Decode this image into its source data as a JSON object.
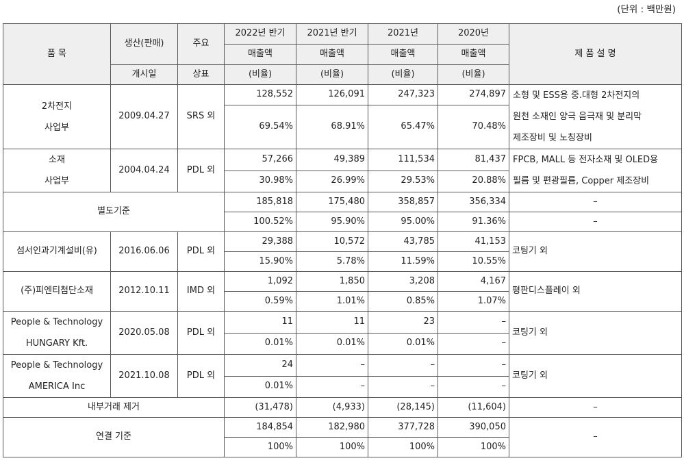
{
  "unit_note": "(단위 : 백만원)",
  "header": {
    "item": "품 목",
    "launch_top": "생산(판매)",
    "launch_bottom": "개시일",
    "brand_top": "주요",
    "brand_bottom": "상표",
    "col2022h": [
      "2022년 반기",
      "매출액",
      "(비율)"
    ],
    "col2021h": [
      "2021년 반기",
      "매출액",
      "(비율)"
    ],
    "col2021": [
      "2021년",
      "매출액",
      "(비율)"
    ],
    "col2020": [
      "2020년",
      "매출액",
      "(비율)"
    ],
    "desc": "제 품 설 명"
  },
  "rows": [
    {
      "name": [
        "2차전지",
        "사업부"
      ],
      "date": "2009.04.27",
      "brand": "SRS 외",
      "sales": [
        "128,552",
        "126,091",
        "247,323",
        "274,897"
      ],
      "ratio": [
        "69.54%",
        "68.91%",
        "65.47%",
        "70.48%"
      ],
      "desc": [
        "소형 및 ESS용 중.대형 2차전지의",
        "원천 소재인 양극 음극재 및 분리막",
        "제조장비 및 노칭장비"
      ]
    },
    {
      "name": [
        "소재",
        "사업부"
      ],
      "date": "2004.04.24",
      "brand": "PDL 외",
      "sales": [
        "57,266",
        "49,389",
        "111,534",
        "81,437"
      ],
      "ratio": [
        "30.98%",
        "26.99%",
        "29.53%",
        "20.88%"
      ],
      "desc": [
        "FPCB, MALL 등 전자소재 및 OLED용",
        "필름 및 편광필름, Copper 제조장비"
      ]
    },
    {
      "name": [
        "별도기준"
      ],
      "sales": [
        "185,818",
        "175,480",
        "358,857",
        "356,334"
      ],
      "ratio": [
        "100.52%",
        "95.90%",
        "95.00%",
        "91.36%"
      ],
      "desc": [
        "–",
        "–"
      ]
    },
    {
      "name": [
        "섬서인과기계설비(유)"
      ],
      "date": "2016.06.06",
      "brand": "PDL 외",
      "sales": [
        "29,388",
        "10,572",
        "43,785",
        "41,153"
      ],
      "ratio": [
        "15.90%",
        "5.78%",
        "11.59%",
        "10.55%"
      ],
      "desc": [
        "코팅기 외"
      ]
    },
    {
      "name": [
        "(주)피엔티첨단소재"
      ],
      "date": "2012.10.11",
      "brand": "IMD 외",
      "sales": [
        "1,092",
        "1,850",
        "3,208",
        "4,167"
      ],
      "ratio": [
        "0.59%",
        "1.01%",
        "0.85%",
        "1.07%"
      ],
      "desc": [
        "평판디스플레이 외"
      ]
    },
    {
      "name": [
        "People & Technology",
        "HUNGARY Kft."
      ],
      "date": "2020.05.08",
      "brand": "PDL 외",
      "sales": [
        "11",
        "11",
        "23",
        "–"
      ],
      "ratio": [
        "0.01%",
        "0.01%",
        "0.01%",
        "–"
      ],
      "desc": [
        "코팅기 외"
      ]
    },
    {
      "name": [
        "People & Technology",
        "AMERICA Inc"
      ],
      "date": "2021.10.08",
      "brand": "PDL 외",
      "sales": [
        "24",
        "–",
        "–",
        "–"
      ],
      "ratio": [
        "0.01%",
        "–",
        "–",
        "–"
      ],
      "desc": [
        "코팅기 외"
      ]
    }
  ],
  "elimination": {
    "name": "내부거래 제거",
    "values": [
      "(31,478)",
      "(4,933)",
      "(28,145)",
      "(11,604)"
    ],
    "desc": "–"
  },
  "consolidated": {
    "name": "연결 기준",
    "sales": [
      "184,854",
      "182,980",
      "377,728",
      "390,050"
    ],
    "ratio": [
      "100%",
      "100%",
      "100%",
      "100%"
    ],
    "desc": "–"
  }
}
